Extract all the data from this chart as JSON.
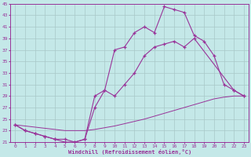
{
  "xlabel": "Windchill (Refroidissement éolien,°C)",
  "background_color": "#c4e8e8",
  "grid_color": "#a8c8c8",
  "line_color": "#993399",
  "xlim": [
    -0.5,
    23.5
  ],
  "ylim": [
    21,
    45
  ],
  "xticks": [
    0,
    1,
    2,
    3,
    4,
    5,
    6,
    7,
    8,
    9,
    10,
    11,
    12,
    13,
    14,
    15,
    16,
    17,
    18,
    19,
    20,
    21,
    22,
    23
  ],
  "yticks": [
    21,
    23,
    25,
    27,
    29,
    31,
    33,
    35,
    37,
    39,
    41,
    43,
    45
  ],
  "line1_x": [
    0,
    1,
    2,
    3,
    4,
    5,
    6,
    7,
    8,
    9,
    10,
    11,
    12,
    13,
    14,
    15,
    16,
    17,
    18,
    19,
    20,
    21,
    22,
    23
  ],
  "line1_y": [
    24,
    23,
    22.5,
    22,
    21.5,
    21,
    21,
    21.5,
    27,
    30,
    37,
    37.5,
    40,
    41,
    40,
    44.5,
    44,
    43.5,
    39.5,
    38.5,
    36,
    31,
    30,
    29
  ],
  "line2_x": [
    0,
    1,
    2,
    3,
    4,
    5,
    6,
    7,
    8,
    9,
    10,
    11,
    12,
    13,
    14,
    15,
    16,
    17,
    18,
    22,
    23
  ],
  "line2_y": [
    24,
    23,
    22.5,
    22,
    21.5,
    21.5,
    21,
    21.5,
    29,
    30,
    29,
    31,
    33,
    36,
    37.5,
    38,
    38.5,
    37.5,
    39,
    30,
    29
  ],
  "line3_x": [
    0,
    1,
    2,
    3,
    4,
    5,
    6,
    7,
    8,
    9,
    10,
    11,
    12,
    13,
    14,
    15,
    16,
    17,
    18,
    19,
    20,
    21,
    22,
    23
  ],
  "line3_y": [
    24,
    23.8,
    23.6,
    23.4,
    23.2,
    23,
    23,
    23,
    23.2,
    23.5,
    23.8,
    24.2,
    24.6,
    25,
    25.5,
    26,
    26.5,
    27,
    27.5,
    28,
    28.5,
    28.8,
    29,
    29
  ]
}
